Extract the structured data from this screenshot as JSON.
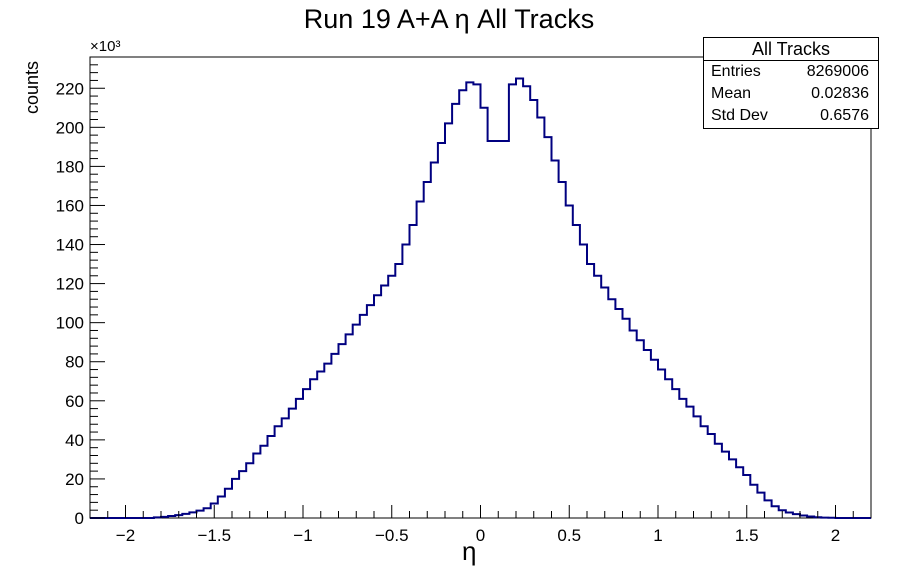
{
  "chart_data": {
    "type": "bar",
    "title": "Run 19 A+A η All Tracks",
    "xlabel": "η",
    "ylabel": "counts",
    "multiplier": "×10³",
    "xlim": [
      -2.2,
      2.2
    ],
    "ylim": [
      0,
      236
    ],
    "xticks": [
      -2,
      -1.5,
      -1,
      -0.5,
      0,
      0.5,
      1,
      1.5,
      2
    ],
    "xtick_labels": [
      "−2",
      "−1.5",
      "−1",
      "−0.5",
      "0",
      "0.5",
      "1",
      "1.5",
      "2"
    ],
    "yticks": [
      0,
      20,
      40,
      60,
      80,
      100,
      120,
      140,
      160,
      180,
      200,
      220
    ],
    "yticks_labels": [
      "0",
      "20",
      "40",
      "60",
      "80",
      "100",
      "120",
      "140",
      "160",
      "180",
      "200",
      "220"
    ],
    "grid": false,
    "color": "#000080",
    "bin_width": 0.04,
    "x_start": -2.2,
    "values": [
      0,
      0,
      0,
      0,
      0,
      0,
      0,
      0,
      0,
      0.3,
      0.6,
      1.0,
      1.5,
      2.1,
      2.9,
      3.8,
      5.0,
      7.4,
      11,
      15,
      20,
      24,
      28,
      33,
      37,
      42,
      47,
      51,
      56,
      61,
      66,
      71,
      75,
      79,
      84,
      89,
      94,
      99,
      104,
      109,
      114,
      119,
      124,
      130,
      140,
      150,
      162,
      172,
      182,
      192,
      202,
      212,
      219,
      223,
      222,
      210,
      193,
      193,
      193,
      222,
      225,
      221,
      214,
      205,
      195,
      183,
      172,
      160,
      150,
      140,
      130,
      124,
      118,
      112,
      107,
      102,
      96,
      91,
      86,
      81,
      76,
      71,
      66,
      61,
      57,
      52,
      47,
      43,
      38,
      34,
      30,
      26,
      22,
      17,
      13,
      9,
      6,
      4,
      2.8,
      2.0,
      1.3,
      0.8,
      0.4,
      0.2,
      0.1,
      0,
      0,
      0,
      0,
      0
    ]
  },
  "stats": {
    "title": "All Tracks",
    "rows": [
      {
        "label": "Entries",
        "value": "8269006"
      },
      {
        "label": "Mean",
        "value": "0.02836"
      },
      {
        "label": "Std Dev",
        "value": "0.6576"
      }
    ]
  }
}
